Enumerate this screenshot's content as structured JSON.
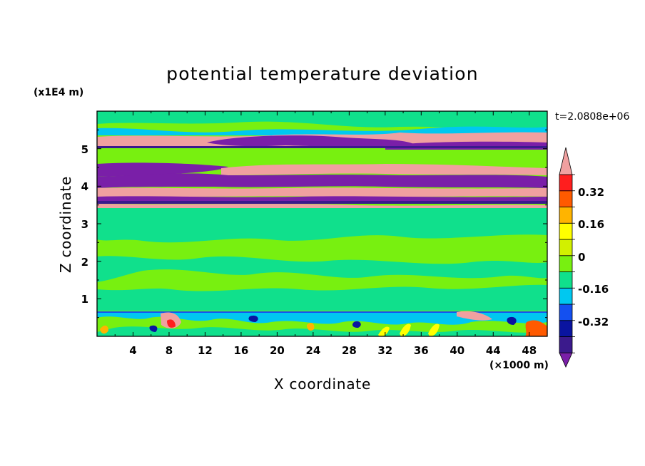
{
  "chart_data": {
    "type": "heatmap",
    "title": "potential temperature deviation",
    "xlabel": "X coordinate",
    "ylabel": "Z coordinate",
    "x_unit": "(×1000 m)",
    "y_unit": "(x1E4 m)",
    "time_label": "t=2.0808e+06",
    "xlim": [
      0,
      50
    ],
    "ylim": [
      0,
      6
    ],
    "x_ticks": [
      "4",
      "8",
      "12",
      "16",
      "20",
      "24",
      "28",
      "32",
      "36",
      "40",
      "44",
      "48"
    ],
    "y_ticks": [
      "1",
      "2",
      "3",
      "4",
      "5"
    ],
    "colorbar": {
      "levels": [
        -0.48,
        -0.4,
        -0.32,
        -0.24,
        -0.16,
        -0.08,
        0,
        0.08,
        0.16,
        0.24,
        0.32,
        0.4
      ],
      "labels": [
        "-0.32",
        "-0.16",
        "0",
        "0.16",
        "0.32"
      ],
      "colors": [
        "#7a1fa8",
        "#3b1a8c",
        "#0a14a0",
        "#1450f0",
        "#00c8f0",
        "#10e08c",
        "#78f010",
        "#d2f000",
        "#ffff00",
        "#ffb400",
        "#ff5a00",
        "#ff1e1e",
        "#f0a0a0"
      ]
    },
    "bands": [
      {
        "z": [
          5.65,
          6.0
        ],
        "level": "#10e08c"
      },
      {
        "z": [
          5.45,
          5.65
        ],
        "level": "#00c8f0"
      },
      {
        "z": [
          5.1,
          5.3
        ],
        "level": "#f0a0a0"
      },
      {
        "z": [
          4.95,
          5.15
        ],
        "level": "#7a1fa8"
      },
      {
        "z": [
          4.5,
          4.65
        ],
        "level": "#7a1fa8"
      },
      {
        "z": [
          4.3,
          4.5
        ],
        "level": "#f0a0a0"
      },
      {
        "z": [
          4.05,
          4.3
        ],
        "level": "#7a1fa8"
      },
      {
        "z": [
          3.85,
          4.05
        ],
        "level": "#f0a0a0"
      },
      {
        "z": [
          3.7,
          3.85
        ],
        "level": "#7a1fa8"
      },
      {
        "z": [
          3.5,
          3.62
        ],
        "level": "#f0a0a0"
      },
      {
        "z": [
          0.65,
          3.5
        ],
        "level": "#10e08c"
      },
      {
        "z": [
          0.0,
          0.6
        ],
        "level": "#00c8f0"
      }
    ]
  }
}
